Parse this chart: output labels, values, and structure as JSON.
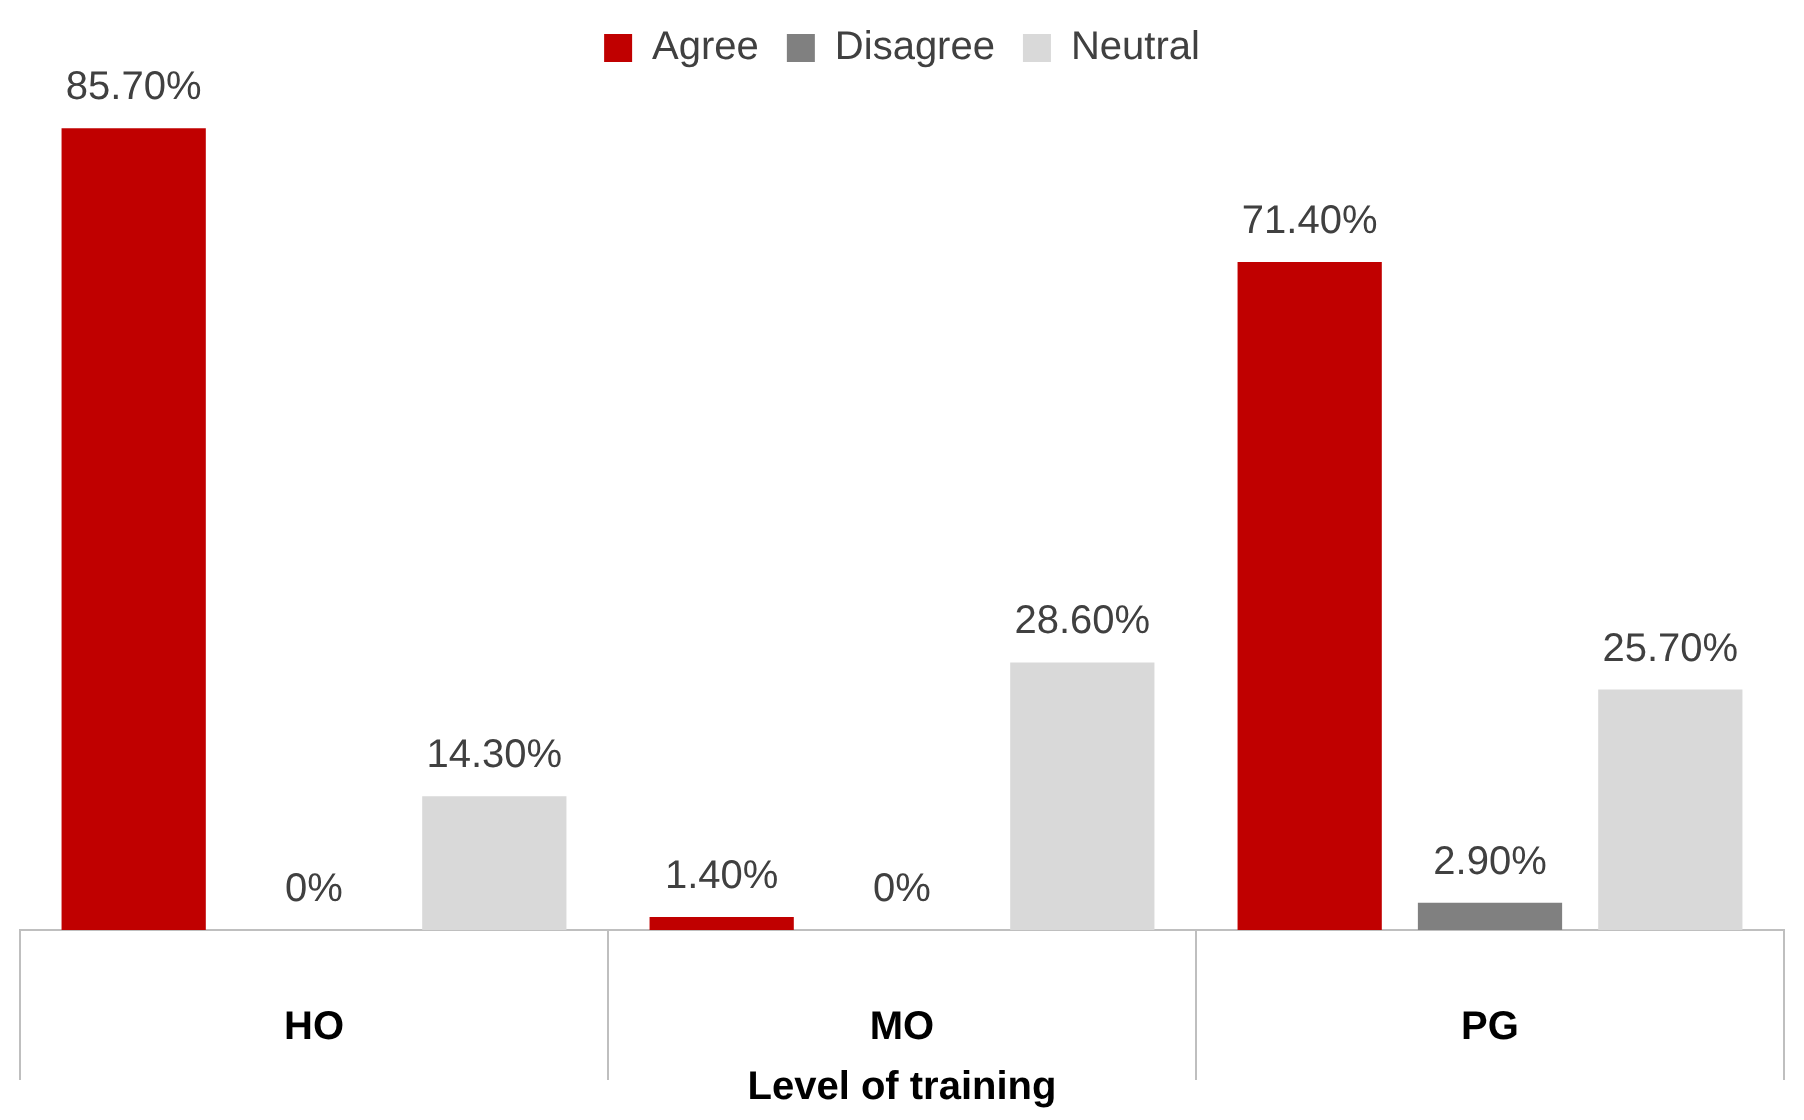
{
  "chart_data": {
    "type": "bar",
    "xlabel": "Level of training",
    "categories": [
      "HO",
      "MO",
      "PG"
    ],
    "series": [
      {
        "name": "Agree",
        "color": "#c00000",
        "values": [
          85.7,
          1.4,
          71.4
        ],
        "value_labels": [
          "85.70%",
          "1.40%",
          "71.40%"
        ]
      },
      {
        "name": "Disagree",
        "color": "#808080",
        "values": [
          0,
          0,
          2.9
        ],
        "value_labels": [
          "0%",
          "0%",
          "2.90%"
        ]
      },
      {
        "name": "Neutral",
        "color": "#d9d9d9",
        "values": [
          14.3,
          28.6,
          25.7
        ],
        "value_labels": [
          "14.30%",
          "28.60%",
          "25.70%"
        ]
      }
    ],
    "legend": "top",
    "grid": false,
    "tick_labels": "x"
  }
}
